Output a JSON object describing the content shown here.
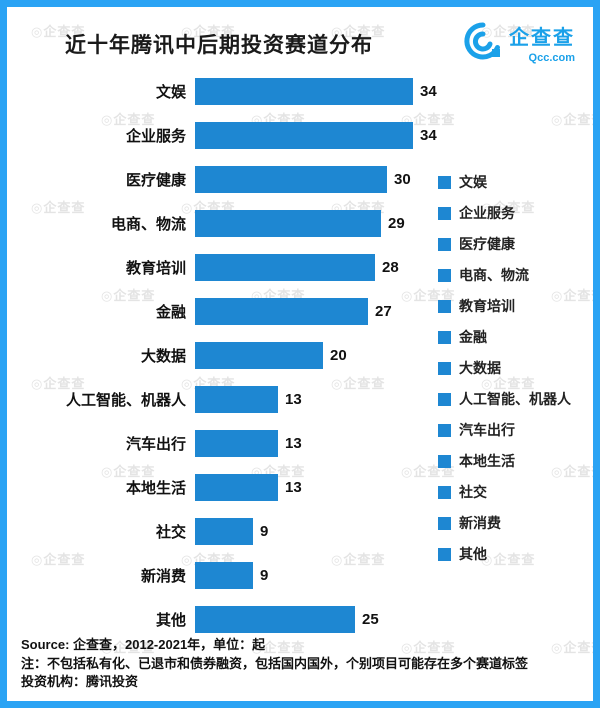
{
  "page": {
    "title": "近十年腾讯中后期投资赛道分布"
  },
  "logo": {
    "name": "企查查",
    "domain": "Qcc.com",
    "color": "#1ba1e9"
  },
  "chart_data": {
    "type": "bar",
    "orientation": "horizontal",
    "title": "近十年腾讯中后期投资赛道分布",
    "categories": [
      "文娱",
      "企业服务",
      "医疗健康",
      "电商、物流",
      "教育培训",
      "金融",
      "大数据",
      "人工智能、机器人",
      "汽车出行",
      "本地生活",
      "社交",
      "新消费",
      "其他"
    ],
    "values": [
      34,
      34,
      30,
      29,
      28,
      27,
      20,
      13,
      13,
      13,
      9,
      9,
      25
    ],
    "xlim": [
      0,
      34
    ],
    "unit": "起",
    "bar_color": "#1e87d2",
    "grid": false,
    "legend_position": "right",
    "legend": [
      "文娱",
      "企业服务",
      "医疗健康",
      "电商、物流",
      "教育培训",
      "金融",
      "大数据",
      "人工智能、机器人",
      "汽车出行",
      "本地生活",
      "社交",
      "新消费",
      "其他"
    ]
  },
  "notes": {
    "source": "Source: 企查查，2012-2021年，单位：起",
    "note": "注：不包括私有化、已退市和债券融资，包括国内国外，个别项目可能存在多个赛道标签",
    "institution": "投资机构：腾讯投资"
  },
  "watermark": {
    "text": "企查查"
  }
}
